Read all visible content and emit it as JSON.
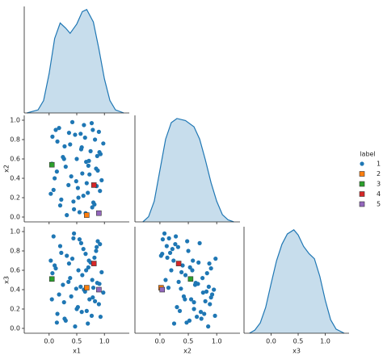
{
  "chart_data": {
    "type": "pairplot",
    "variables": [
      "x1",
      "x2",
      "x3"
    ],
    "xlim": [
      [
        -0.45,
        1.45
      ],
      [
        -0.44,
        1.41
      ],
      [
        -0.5,
        1.44
      ]
    ],
    "ylim": [
      -0.05,
      1.05
    ],
    "kde_ylim": [
      0,
      1.03
    ],
    "xticks": [
      {
        "value": 0,
        "label": "0.0"
      },
      0.5,
      {
        "value": 1,
        "label": "1.0"
      }
    ],
    "yticks": [
      {
        "value": 0,
        "label": "0.0"
      },
      0.2,
      0.4,
      0.6,
      0.8,
      {
        "value": 1,
        "label": "1.0"
      }
    ],
    "kde_color": "#1f77b4",
    "kde": [
      {
        "x": [
          -0.4,
          -0.2,
          -0.1,
          0,
          0.1,
          0.2,
          0.3,
          0.38,
          0.5,
          0.6,
          0.68,
          0.8,
          0.9,
          1.0,
          1.1,
          1.2,
          1.35
        ],
        "density": [
          0,
          0.03,
          0.12,
          0.38,
          0.72,
          0.87,
          0.82,
          0.77,
          0.86,
          0.98,
          1.0,
          0.88,
          0.62,
          0.33,
          0.12,
          0.03,
          0
        ]
      },
      {
        "x": [
          -0.3,
          -0.2,
          -0.1,
          0,
          0.1,
          0.2,
          0.3,
          0.45,
          0.6,
          0.7,
          0.8,
          0.9,
          1.0,
          1.1,
          1.2,
          1.3
        ],
        "density": [
          0,
          0.05,
          0.2,
          0.5,
          0.8,
          0.96,
          1.0,
          0.98,
          0.92,
          0.8,
          0.6,
          0.38,
          0.2,
          0.07,
          0.02,
          0
        ]
      },
      {
        "x": [
          -0.4,
          -0.3,
          -0.2,
          -0.1,
          0,
          0.1,
          0.2,
          0.3,
          0.42,
          0.5,
          0.6,
          0.7,
          0.8,
          0.9,
          1.0,
          1.1,
          1.2,
          1.35
        ],
        "density": [
          0,
          0.03,
          0.1,
          0.25,
          0.48,
          0.7,
          0.86,
          0.96,
          1.0,
          0.95,
          0.84,
          0.77,
          0.72,
          0.55,
          0.32,
          0.13,
          0.04,
          0
        ]
      }
    ],
    "legend_title": "label",
    "legend_position": "right",
    "series": [
      {
        "name": "1",
        "color": "#1f77b4",
        "marker": "circle",
        "x1": [
          0.05,
          0.12,
          0.2,
          0.28,
          0.35,
          0.42,
          0.5,
          0.55,
          0.6,
          0.65,
          0.7,
          0.75,
          0.8,
          0.85,
          0.9,
          0.95,
          0.08,
          0.15,
          0.25,
          0.32,
          0.4,
          0.47,
          0.53,
          0.58,
          0.63,
          0.68,
          0.72,
          0.78,
          0.83,
          0.88,
          0.93,
          0.1,
          0.18,
          0.22,
          0.3,
          0.38,
          0.45,
          0.52,
          0.57,
          0.62,
          0.67,
          0.73,
          0.77,
          0.82,
          0.87,
          0.92,
          0.98,
          0.06,
          0.14,
          0.27,
          0.36,
          0.44,
          0.49,
          0.59,
          0.66,
          0.71,
          0.79,
          0.86,
          0.91,
          0.03
        ],
        "x2": [
          0.55,
          0.9,
          0.12,
          0.73,
          0.33,
          0.98,
          0.6,
          0.05,
          0.45,
          0.82,
          0.25,
          0.68,
          0.15,
          0.5,
          0.88,
          0.38,
          0.28,
          0.78,
          0.62,
          0.02,
          0.42,
          0.85,
          0.2,
          0.7,
          0.95,
          0.35,
          0.58,
          0.1,
          0.8,
          0.48,
          0.65,
          0.4,
          0.92,
          0.18,
          0.52,
          0.75,
          0.08,
          0.3,
          0.86,
          0.22,
          0.57,
          0.44,
          0.97,
          0.13,
          0.63,
          0.27,
          0.76,
          0.83,
          0.47,
          0.6,
          0.87,
          0.16,
          0.37,
          0.72,
          0.04,
          0.53,
          0.9,
          0.32,
          0.67,
          0.24
        ],
        "x3": [
          0.3,
          0.62,
          0.85,
          0.1,
          0.48,
          0.72,
          0.2,
          0.92,
          0.55,
          0.38,
          0.05,
          0.68,
          0.42,
          0.8,
          0.25,
          0.58,
          0.95,
          0.15,
          0.45,
          0.75,
          0.33,
          0.02,
          0.6,
          0.88,
          0.4,
          0.18,
          0.7,
          0.5,
          0.28,
          0.9,
          0.12,
          0.65,
          0.35,
          0.78,
          0.08,
          0.52,
          0.98,
          0.22,
          0.43,
          0.82,
          0.6,
          0.3,
          0.13,
          0.73,
          0.47,
          0.87,
          0.37,
          0.57,
          0.06,
          0.27,
          0.67,
          0.93,
          0.41,
          0.17,
          0.77,
          0.63,
          0.32,
          0.84,
          0.46,
          0.7
        ]
      },
      {
        "name": "2",
        "color": "#ff7f0e",
        "marker": "square",
        "x1": [
          0.68
        ],
        "x2": [
          0.02
        ],
        "x3": [
          0.42
        ]
      },
      {
        "name": "3",
        "color": "#2ca02c",
        "marker": "square",
        "x1": [
          0.05
        ],
        "x2": [
          0.54
        ],
        "x3": [
          0.51
        ]
      },
      {
        "name": "4",
        "color": "#d62728",
        "marker": "square",
        "x1": [
          0.81
        ],
        "x2": [
          0.33
        ],
        "x3": [
          0.67
        ]
      },
      {
        "name": "5",
        "color": "#9467bd",
        "marker": "square",
        "x1": [
          0.9
        ],
        "x2": [
          0.04
        ],
        "x3": [
          0.4
        ]
      }
    ]
  }
}
